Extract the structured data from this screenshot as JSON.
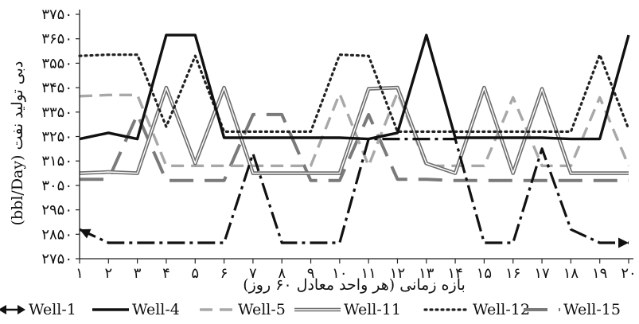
{
  "chart_data": {
    "type": "line",
    "title": "",
    "xlabel": "بازه زمانی (هر واحد معادل ۶۰ روز)",
    "ylabel": "دبی تولید نفت (bbl/Day)",
    "x_ticks": [
      "۱",
      "۲",
      "۳",
      "۴",
      "۵",
      "۶",
      "۷",
      "۸",
      "۹",
      "۱۰",
      "۱۱",
      "۱۲",
      "۱۳",
      "۱۴",
      "۱۵",
      "۱۶",
      "۱۷",
      "۱۸",
      "۱۹",
      "۲۰"
    ],
    "y_ticks": [
      "۲۷۵۰",
      "۲۸۵۰",
      "۲۹۵۰",
      "۳۰۵۰",
      "۳۱۵۰",
      "۳۲۵۰",
      "۳۳۵۰",
      "۳۴۵۰",
      "۳۵۵۰",
      "۳۶۵۰",
      "۳۷۵۰"
    ],
    "x": [
      1,
      2,
      3,
      4,
      5,
      6,
      7,
      8,
      9,
      10,
      11,
      12,
      13,
      14,
      15,
      16,
      17,
      18,
      19,
      20
    ],
    "ylim": [
      2750,
      3750
    ],
    "grid": false,
    "legend_position": "bottom",
    "series": [
      {
        "name": "Well-1",
        "style": "dash-dot-black",
        "values": [
          2870,
          2815,
          2815,
          2815,
          2815,
          2815,
          3180,
          2815,
          2815,
          2815,
          3240,
          3240,
          3240,
          3240,
          2815,
          2815,
          3200,
          2870,
          2815,
          2815
        ]
      },
      {
        "name": "Well-4",
        "style": "solid-black-thick",
        "values": [
          3240,
          3265,
          3240,
          3665,
          3665,
          3245,
          3245,
          3245,
          3245,
          3245,
          3240,
          3265,
          3665,
          3245,
          3245,
          3245,
          3245,
          3240,
          3240,
          3665
        ]
      },
      {
        "name": "Well-5",
        "style": "dashed-light-gray",
        "values": [
          3415,
          3420,
          3420,
          3130,
          3130,
          3130,
          3130,
          3130,
          3130,
          3425,
          3130,
          3430,
          3130,
          3130,
          3130,
          3410,
          3130,
          3130,
          3410,
          3130
        ]
      },
      {
        "name": "Well-11",
        "style": "double-line-gray",
        "values": [
          3100,
          3105,
          3100,
          3450,
          3140,
          3450,
          3100,
          3100,
          3100,
          3100,
          3445,
          3450,
          3140,
          3100,
          3450,
          3100,
          3445,
          3100,
          3100,
          3100
        ]
      },
      {
        "name": "Well-12",
        "style": "dotted-black",
        "values": [
          3580,
          3585,
          3585,
          3290,
          3580,
          3270,
          3270,
          3270,
          3270,
          3585,
          3580,
          3270,
          3270,
          3270,
          3270,
          3270,
          3270,
          3270,
          3585,
          3280
        ]
      },
      {
        "name": "Well-15",
        "style": "long-dash-dark-gray",
        "values": [
          3075,
          3075,
          3340,
          3070,
          3070,
          3070,
          3340,
          3340,
          3070,
          3070,
          3340,
          3075,
          3075,
          3070,
          3070,
          3070,
          3070,
          3070,
          3070,
          3070
        ]
      }
    ]
  }
}
